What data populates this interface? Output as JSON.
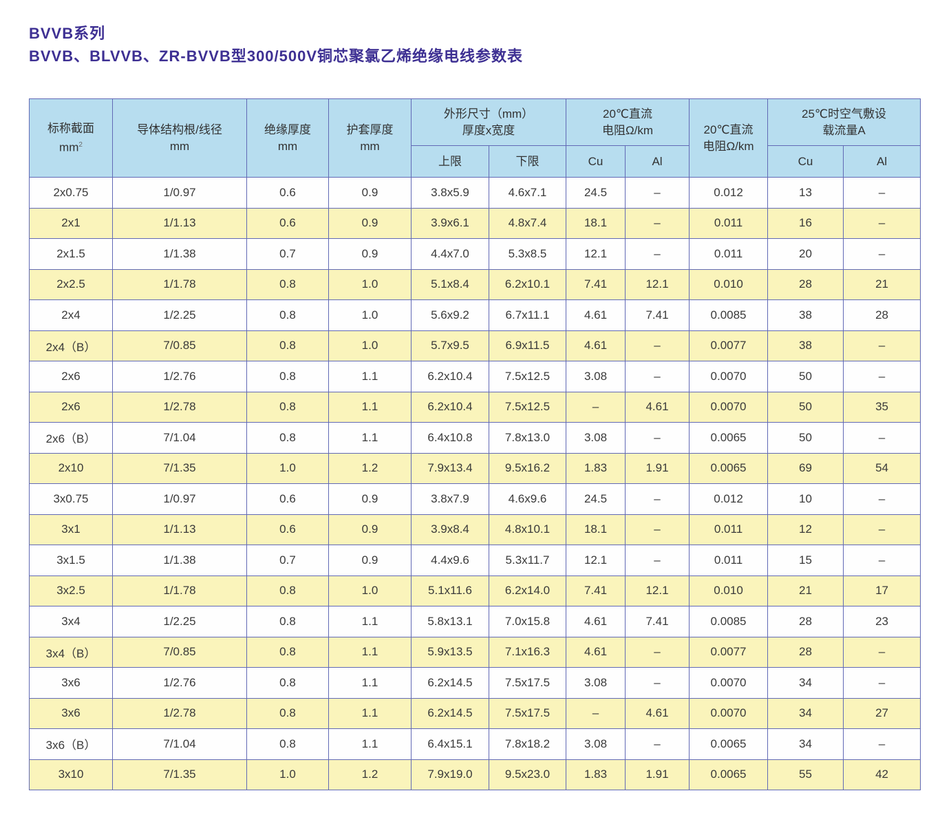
{
  "title": {
    "line1": "BVVB系列",
    "line2": "BVVB、BLVVB、ZR-BVVB型300/500V铜芯聚氯乙烯绝缘电线参数表"
  },
  "colors": {
    "title_text": "#3e3093",
    "table_border": "#6169b5",
    "header_bg": "#b7ddef",
    "row_alt_bg": "#faf4bb",
    "row_bg": "#fefefe",
    "cell_text": "#3a3a3a"
  },
  "table": {
    "headers": {
      "nominal_section": {
        "line1": "标称截面",
        "line2": "mm",
        "sup": "2"
      },
      "conductor": {
        "line1": "导体结构根/线径",
        "line2": "mm"
      },
      "insulation": {
        "line1": "绝缘厚度",
        "line2": "mm"
      },
      "sheath": {
        "line1": "护套厚度",
        "line2": "mm"
      },
      "dimensions": {
        "line1": "外形尺寸（mm）",
        "line2": "厚度x宽度",
        "sub": [
          "上限",
          "下限"
        ]
      },
      "dc_resistance": {
        "line1": "20℃直流",
        "line2": "电阻Ω/km",
        "sub": [
          "Cu",
          "Al"
        ]
      },
      "dc_resistance_single": {
        "line1": "20℃直流",
        "line2": "电阻Ω/km"
      },
      "current_capacity": {
        "line1": "25℃时空气敷设",
        "line2": "载流量A",
        "sub": [
          "Cu",
          "Al"
        ]
      }
    },
    "rows": [
      [
        "2x0.75",
        "1/0.97",
        "0.6",
        "0.9",
        "3.8x5.9",
        "4.6x7.1",
        "24.5",
        "–",
        "0.012",
        "13",
        "–"
      ],
      [
        "2x1",
        "1/1.13",
        "0.6",
        "0.9",
        "3.9x6.1",
        "4.8x7.4",
        "18.1",
        "–",
        "0.011",
        "16",
        "–"
      ],
      [
        "2x1.5",
        "1/1.38",
        "0.7",
        "0.9",
        "4.4x7.0",
        "5.3x8.5",
        "12.1",
        "–",
        "0.011",
        "20",
        "–"
      ],
      [
        "2x2.5",
        "1/1.78",
        "0.8",
        "1.0",
        "5.1x8.4",
        "6.2x10.1",
        "7.41",
        "12.1",
        "0.010",
        "28",
        "21"
      ],
      [
        "2x4",
        "1/2.25",
        "0.8",
        "1.0",
        "5.6x9.2",
        "6.7x11.1",
        "4.61",
        "7.41",
        "0.0085",
        "38",
        "28"
      ],
      [
        "2x4（B）",
        "7/0.85",
        "0.8",
        "1.0",
        "5.7x9.5",
        "6.9x11.5",
        "4.61",
        "–",
        "0.0077",
        "38",
        "–"
      ],
      [
        "2x6",
        "1/2.76",
        "0.8",
        "1.1",
        "6.2x10.4",
        "7.5x12.5",
        "3.08",
        "–",
        "0.0070",
        "50",
        "–"
      ],
      [
        "2x6",
        "1/2.78",
        "0.8",
        "1.1",
        "6.2x10.4",
        "7.5x12.5",
        "–",
        "4.61",
        "0.0070",
        "50",
        "35"
      ],
      [
        "2x6（B）",
        "7/1.04",
        "0.8",
        "1.1",
        "6.4x10.8",
        "7.8x13.0",
        "3.08",
        "–",
        "0.0065",
        "50",
        "–"
      ],
      [
        "2x10",
        "7/1.35",
        "1.0",
        "1.2",
        "7.9x13.4",
        "9.5x16.2",
        "1.83",
        "1.91",
        "0.0065",
        "69",
        "54"
      ],
      [
        "3x0.75",
        "1/0.97",
        "0.6",
        "0.9",
        "3.8x7.9",
        "4.6x9.6",
        "24.5",
        "–",
        "0.012",
        "10",
        "–"
      ],
      [
        "3x1",
        "1/1.13",
        "0.6",
        "0.9",
        "3.9x8.4",
        "4.8x10.1",
        "18.1",
        "–",
        "0.011",
        "12",
        "–"
      ],
      [
        "3x1.5",
        "1/1.38",
        "0.7",
        "0.9",
        "4.4x9.6",
        "5.3x11.7",
        "12.1",
        "–",
        "0.011",
        "15",
        "–"
      ],
      [
        "3x2.5",
        "1/1.78",
        "0.8",
        "1.0",
        "5.1x11.6",
        "6.2x14.0",
        "7.41",
        "12.1",
        "0.010",
        "21",
        "17"
      ],
      [
        "3x4",
        "1/2.25",
        "0.8",
        "1.1",
        "5.8x13.1",
        "7.0x15.8",
        "4.61",
        "7.41",
        "0.0085",
        "28",
        "23"
      ],
      [
        "3x4（B）",
        "7/0.85",
        "0.8",
        "1.1",
        "5.9x13.5",
        "7.1x16.3",
        "4.61",
        "–",
        "0.0077",
        "28",
        "–"
      ],
      [
        "3x6",
        "1/2.76",
        "0.8",
        "1.1",
        "6.2x14.5",
        "7.5x17.5",
        "3.08",
        "–",
        "0.0070",
        "34",
        "–"
      ],
      [
        "3x6",
        "1/2.78",
        "0.8",
        "1.1",
        "6.2x14.5",
        "7.5x17.5",
        "–",
        "4.61",
        "0.0070",
        "34",
        "27"
      ],
      [
        "3x6（B）",
        "7/1.04",
        "0.8",
        "1.1",
        "6.4x15.1",
        "7.8x18.2",
        "3.08",
        "–",
        "0.0065",
        "34",
        "–"
      ],
      [
        "3x10",
        "7/1.35",
        "1.0",
        "1.2",
        "7.9x19.0",
        "9.5x23.0",
        "1.83",
        "1.91",
        "0.0065",
        "55",
        "42"
      ]
    ]
  }
}
